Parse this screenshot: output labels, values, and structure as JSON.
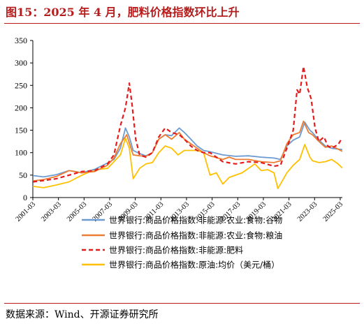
{
  "title": "图15：2025 年 4 月，肥料价格指数环比上升",
  "source": "数据来源：Wind、开源证券研究所",
  "chart_data": {
    "type": "line",
    "xlabel": "",
    "ylabel": "",
    "ylim": [
      0,
      350
    ],
    "yticks": [
      0,
      50,
      100,
      150,
      200,
      250,
      300,
      350
    ],
    "xrange": [
      2001.167,
      2025.333
    ],
    "xtick_labels": [
      "2001-03",
      "2003-03",
      "2005-03",
      "2007-03",
      "2009-03",
      "2011-03",
      "2013-03",
      "2015-03",
      "2017-03",
      "2019-03",
      "2021-03",
      "2023-03",
      "2025-03"
    ],
    "grid": false,
    "legend_position": "bottom",
    "series": [
      {
        "name": "世界银行:商品价格指数:非能源:农业:食物:谷物",
        "color": "#6c9bd2",
        "dash": "",
        "points": [
          [
            2001.17,
            49
          ],
          [
            2002.0,
            46
          ],
          [
            2003.0,
            51
          ],
          [
            2004.0,
            60
          ],
          [
            2004.5,
            58
          ],
          [
            2005.0,
            55
          ],
          [
            2006.0,
            63
          ],
          [
            2007.0,
            77
          ],
          [
            2007.5,
            85
          ],
          [
            2008.0,
            110
          ],
          [
            2008.4,
            155
          ],
          [
            2008.7,
            135
          ],
          [
            2009.0,
            105
          ],
          [
            2009.5,
            98
          ],
          [
            2010.0,
            93
          ],
          [
            2010.5,
            100
          ],
          [
            2011.0,
            130
          ],
          [
            2011.5,
            140
          ],
          [
            2012.0,
            138
          ],
          [
            2012.6,
            155
          ],
          [
            2013.0,
            145
          ],
          [
            2013.5,
            130
          ],
          [
            2014.0,
            115
          ],
          [
            2014.5,
            105
          ],
          [
            2015.0,
            102
          ],
          [
            2016.0,
            95
          ],
          [
            2017.0,
            92
          ],
          [
            2018.0,
            93
          ],
          [
            2019.0,
            90
          ],
          [
            2020.0,
            88
          ],
          [
            2020.5,
            85
          ],
          [
            2021.0,
            115
          ],
          [
            2021.5,
            128
          ],
          [
            2022.0,
            135
          ],
          [
            2022.4,
            168
          ],
          [
            2022.8,
            150
          ],
          [
            2023.0,
            145
          ],
          [
            2023.5,
            128
          ],
          [
            2024.0,
            115
          ],
          [
            2024.5,
            110
          ],
          [
            2025.0,
            108
          ],
          [
            2025.33,
            107
          ]
        ]
      },
      {
        "name": "世界银行:商品价格指数:非能源:农业:食物:粮油",
        "color": "#ed7d31",
        "dash": "",
        "points": [
          [
            2001.17,
            37
          ],
          [
            2002.0,
            40
          ],
          [
            2003.0,
            47
          ],
          [
            2004.0,
            60
          ],
          [
            2005.0,
            55
          ],
          [
            2006.0,
            58
          ],
          [
            2007.0,
            72
          ],
          [
            2007.5,
            88
          ],
          [
            2008.0,
            120
          ],
          [
            2008.5,
            140
          ],
          [
            2009.0,
            95
          ],
          [
            2009.5,
            93
          ],
          [
            2010.0,
            92
          ],
          [
            2010.5,
            100
          ],
          [
            2011.0,
            130
          ],
          [
            2011.5,
            140
          ],
          [
            2012.0,
            130
          ],
          [
            2012.6,
            145
          ],
          [
            2013.0,
            130
          ],
          [
            2013.5,
            120
          ],
          [
            2014.0,
            110
          ],
          [
            2014.5,
            100
          ],
          [
            2015.0,
            93
          ],
          [
            2016.0,
            85
          ],
          [
            2016.5,
            90
          ],
          [
            2017.0,
            85
          ],
          [
            2018.0,
            85
          ],
          [
            2019.0,
            80
          ],
          [
            2020.0,
            78
          ],
          [
            2020.5,
            82
          ],
          [
            2021.0,
            120
          ],
          [
            2021.5,
            140
          ],
          [
            2022.0,
            145
          ],
          [
            2022.3,
            170
          ],
          [
            2022.7,
            145
          ],
          [
            2023.0,
            140
          ],
          [
            2023.5,
            125
          ],
          [
            2024.0,
            112
          ],
          [
            2024.5,
            115
          ],
          [
            2025.0,
            108
          ],
          [
            2025.33,
            103
          ]
        ]
      },
      {
        "name": "世界银行:商品价格指数:非能源:肥料",
        "color": "#e51c1c",
        "dash": "6,4",
        "points": [
          [
            2001.17,
            35
          ],
          [
            2002.0,
            38
          ],
          [
            2003.0,
            42
          ],
          [
            2004.0,
            50
          ],
          [
            2005.0,
            58
          ],
          [
            2006.0,
            60
          ],
          [
            2007.0,
            75
          ],
          [
            2007.5,
            95
          ],
          [
            2008.0,
            160
          ],
          [
            2008.4,
            200
          ],
          [
            2008.7,
            255
          ],
          [
            2008.9,
            210
          ],
          [
            2009.2,
            130
          ],
          [
            2009.5,
            95
          ],
          [
            2010.0,
            90
          ],
          [
            2010.5,
            100
          ],
          [
            2011.0,
            135
          ],
          [
            2011.5,
            155
          ],
          [
            2012.0,
            145
          ],
          [
            2012.6,
            140
          ],
          [
            2013.0,
            130
          ],
          [
            2013.5,
            115
          ],
          [
            2014.0,
            105
          ],
          [
            2014.5,
            100
          ],
          [
            2015.0,
            100
          ],
          [
            2016.0,
            80
          ],
          [
            2017.0,
            75
          ],
          [
            2018.0,
            80
          ],
          [
            2019.0,
            78
          ],
          [
            2020.0,
            70
          ],
          [
            2020.5,
            72
          ],
          [
            2021.0,
            110
          ],
          [
            2021.5,
            150
          ],
          [
            2021.8,
            240
          ],
          [
            2022.0,
            230
          ],
          [
            2022.3,
            292
          ],
          [
            2022.6,
            245
          ],
          [
            2022.9,
            220
          ],
          [
            2023.2,
            155
          ],
          [
            2023.5,
            125
          ],
          [
            2023.9,
            135
          ],
          [
            2024.2,
            115
          ],
          [
            2024.5,
            110
          ],
          [
            2025.0,
            118
          ],
          [
            2025.33,
            133
          ]
        ]
      },
      {
        "name": "世界银行:商品价格指数:原油:均价（美元/桶）",
        "color": "#ffc000",
        "dash": "",
        "points": [
          [
            2001.17,
            25
          ],
          [
            2002.0,
            22
          ],
          [
            2003.0,
            28
          ],
          [
            2004.0,
            35
          ],
          [
            2005.0,
            50
          ],
          [
            2006.0,
            62
          ],
          [
            2007.0,
            65
          ],
          [
            2007.5,
            80
          ],
          [
            2008.0,
            95
          ],
          [
            2008.4,
            132
          ],
          [
            2008.7,
            110
          ],
          [
            2009.0,
            42
          ],
          [
            2009.5,
            65
          ],
          [
            2010.0,
            75
          ],
          [
            2010.5,
            78
          ],
          [
            2011.0,
            100
          ],
          [
            2011.5,
            115
          ],
          [
            2012.0,
            110
          ],
          [
            2012.5,
            95
          ],
          [
            2013.0,
            105
          ],
          [
            2013.5,
            105
          ],
          [
            2014.0,
            105
          ],
          [
            2014.5,
            100
          ],
          [
            2015.0,
            50
          ],
          [
            2015.5,
            55
          ],
          [
            2016.0,
            30
          ],
          [
            2016.5,
            45
          ],
          [
            2017.0,
            50
          ],
          [
            2017.5,
            55
          ],
          [
            2018.0,
            65
          ],
          [
            2018.5,
            75
          ],
          [
            2019.0,
            60
          ],
          [
            2019.5,
            62
          ],
          [
            2020.0,
            55
          ],
          [
            2020.3,
            20
          ],
          [
            2020.7,
            40
          ],
          [
            2021.0,
            55
          ],
          [
            2021.5,
            72
          ],
          [
            2022.0,
            85
          ],
          [
            2022.4,
            118
          ],
          [
            2022.8,
            90
          ],
          [
            2023.0,
            82
          ],
          [
            2023.5,
            78
          ],
          [
            2024.0,
            80
          ],
          [
            2024.5,
            85
          ],
          [
            2025.0,
            75
          ],
          [
            2025.33,
            66
          ]
        ]
      }
    ]
  }
}
